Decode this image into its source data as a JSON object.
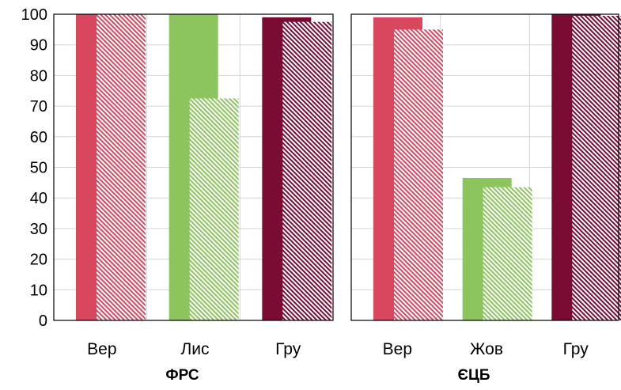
{
  "chart_data": [
    {
      "type": "bar",
      "title": "ФРС",
      "categories": [
        "Вер",
        "Лис",
        "Гру"
      ],
      "bar_colors": [
        "#d9475f",
        "#8cc45e",
        "#7a0b33"
      ],
      "series": [
        {
          "style": "solid",
          "values": [
            100,
            100,
            99
          ]
        },
        {
          "style": "hatched",
          "values": [
            100,
            72.5,
            97.5
          ]
        }
      ],
      "ylim": [
        0,
        100
      ],
      "yticks": [
        0,
        10,
        20,
        30,
        40,
        50,
        60,
        70,
        80,
        90,
        100
      ],
      "grid": true
    },
    {
      "type": "bar",
      "title": "ЄЦБ",
      "categories": [
        "Вер",
        "Жов",
        "Гру"
      ],
      "bar_colors": [
        "#d9475f",
        "#8cc45e",
        "#7a0b33"
      ],
      "series": [
        {
          "style": "solid",
          "values": [
            99,
            46.5,
            100
          ]
        },
        {
          "style": "hatched",
          "values": [
            95,
            43.5,
            99.5
          ]
        }
      ],
      "ylim": [
        0,
        100
      ],
      "grid": true
    }
  ]
}
